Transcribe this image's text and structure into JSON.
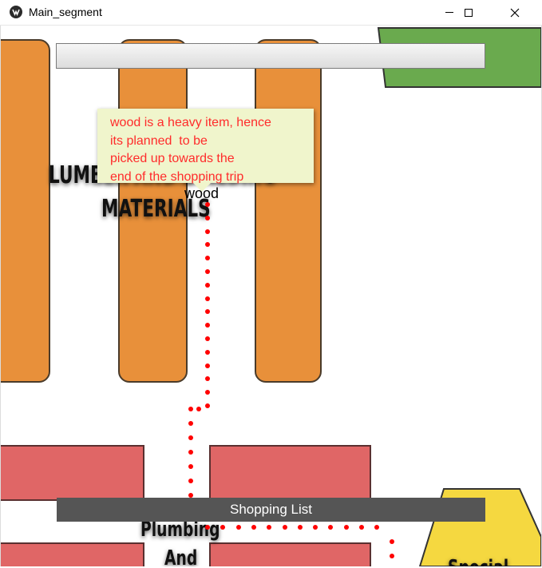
{
  "window": {
    "title": "Main_segment",
    "icons": [
      "app-logo-icon",
      "minimize-icon",
      "maximize-icon",
      "close-icon"
    ]
  },
  "map": {
    "areas": {
      "lumber": {
        "line1": "LUMBER AND BUILDING",
        "line2": "MATERIALS"
      },
      "plumbing": {
        "line1": "Plumbing",
        "line2": "And"
      },
      "yellow_area": {
        "label": "Special"
      }
    },
    "colors": {
      "shelf": "#e8903a",
      "red_block": "#e06666",
      "green_area": "#6aaa4e",
      "yellow_area": "#f5d840",
      "route": "#ff0000"
    }
  },
  "search": {
    "value": ""
  },
  "tooltip": {
    "text": "wood is a heavy item, hence\nits planned  to be\npicked up towards the\nend of the shopping trip"
  },
  "item": {
    "label": "wood"
  },
  "shopping_list": {
    "label": "Shopping List"
  }
}
